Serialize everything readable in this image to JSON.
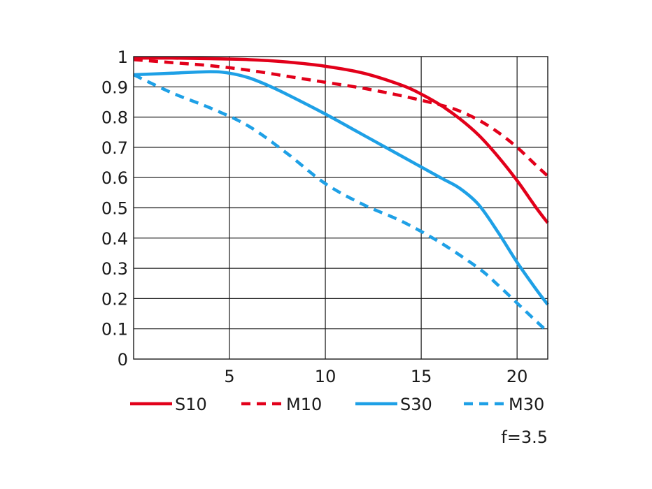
{
  "chart_data": {
    "type": "line",
    "title": "",
    "xlabel": "",
    "ylabel": "",
    "xlim": [
      0,
      21.6
    ],
    "ylim": [
      0,
      1
    ],
    "x_ticks": [
      5,
      10,
      15,
      20
    ],
    "x_tick_labels": [
      "5",
      "10",
      "15",
      "20"
    ],
    "y_ticks": [
      0,
      0.1,
      0.2,
      0.3,
      0.4,
      0.5,
      0.6,
      0.7,
      0.8,
      0.9,
      1
    ],
    "y_tick_labels": [
      "0",
      "0.1",
      "0.2",
      "0.3",
      "0.4",
      "0.5",
      "0.6",
      "0.7",
      "0.8",
      "0.9",
      "1"
    ],
    "grid": true,
    "legend_position": "bottom",
    "annotation": "f=3.5",
    "series": [
      {
        "name": "S10",
        "color": "#e2001a",
        "dash": "solid",
        "x": [
          0,
          2,
          4,
          6,
          8,
          10,
          12,
          14,
          15,
          16,
          17,
          18,
          19,
          20,
          21,
          21.6
        ],
        "y": [
          0.995,
          0.995,
          0.993,
          0.99,
          0.982,
          0.968,
          0.945,
          0.905,
          0.876,
          0.84,
          0.795,
          0.74,
          0.67,
          0.59,
          0.5,
          0.45
        ]
      },
      {
        "name": "M10",
        "color": "#e2001a",
        "dash": "dashed",
        "x": [
          0,
          2,
          4,
          6,
          8,
          10,
          12,
          14,
          16,
          17,
          18,
          19,
          20,
          21,
          21.6
        ],
        "y": [
          0.99,
          0.98,
          0.97,
          0.955,
          0.935,
          0.915,
          0.895,
          0.87,
          0.84,
          0.82,
          0.79,
          0.75,
          0.7,
          0.64,
          0.605
        ]
      },
      {
        "name": "S30",
        "color": "#1ea0e6",
        "dash": "solid",
        "x": [
          0,
          2,
          4,
          5,
          6,
          7,
          8,
          10,
          12,
          14,
          16,
          17,
          18,
          19,
          20,
          21,
          21.6
        ],
        "y": [
          0.94,
          0.945,
          0.95,
          0.945,
          0.93,
          0.905,
          0.875,
          0.81,
          0.74,
          0.67,
          0.6,
          0.565,
          0.51,
          0.42,
          0.32,
          0.23,
          0.18
        ]
      },
      {
        "name": "M30",
        "color": "#1ea0e6",
        "dash": "dashed",
        "x": [
          0,
          2,
          4,
          6,
          8,
          10,
          12,
          14,
          16,
          18,
          19,
          20,
          21,
          21.6
        ],
        "y": [
          0.94,
          0.88,
          0.83,
          0.77,
          0.68,
          0.58,
          0.51,
          0.455,
          0.385,
          0.3,
          0.245,
          0.185,
          0.125,
          0.09
        ]
      }
    ]
  }
}
